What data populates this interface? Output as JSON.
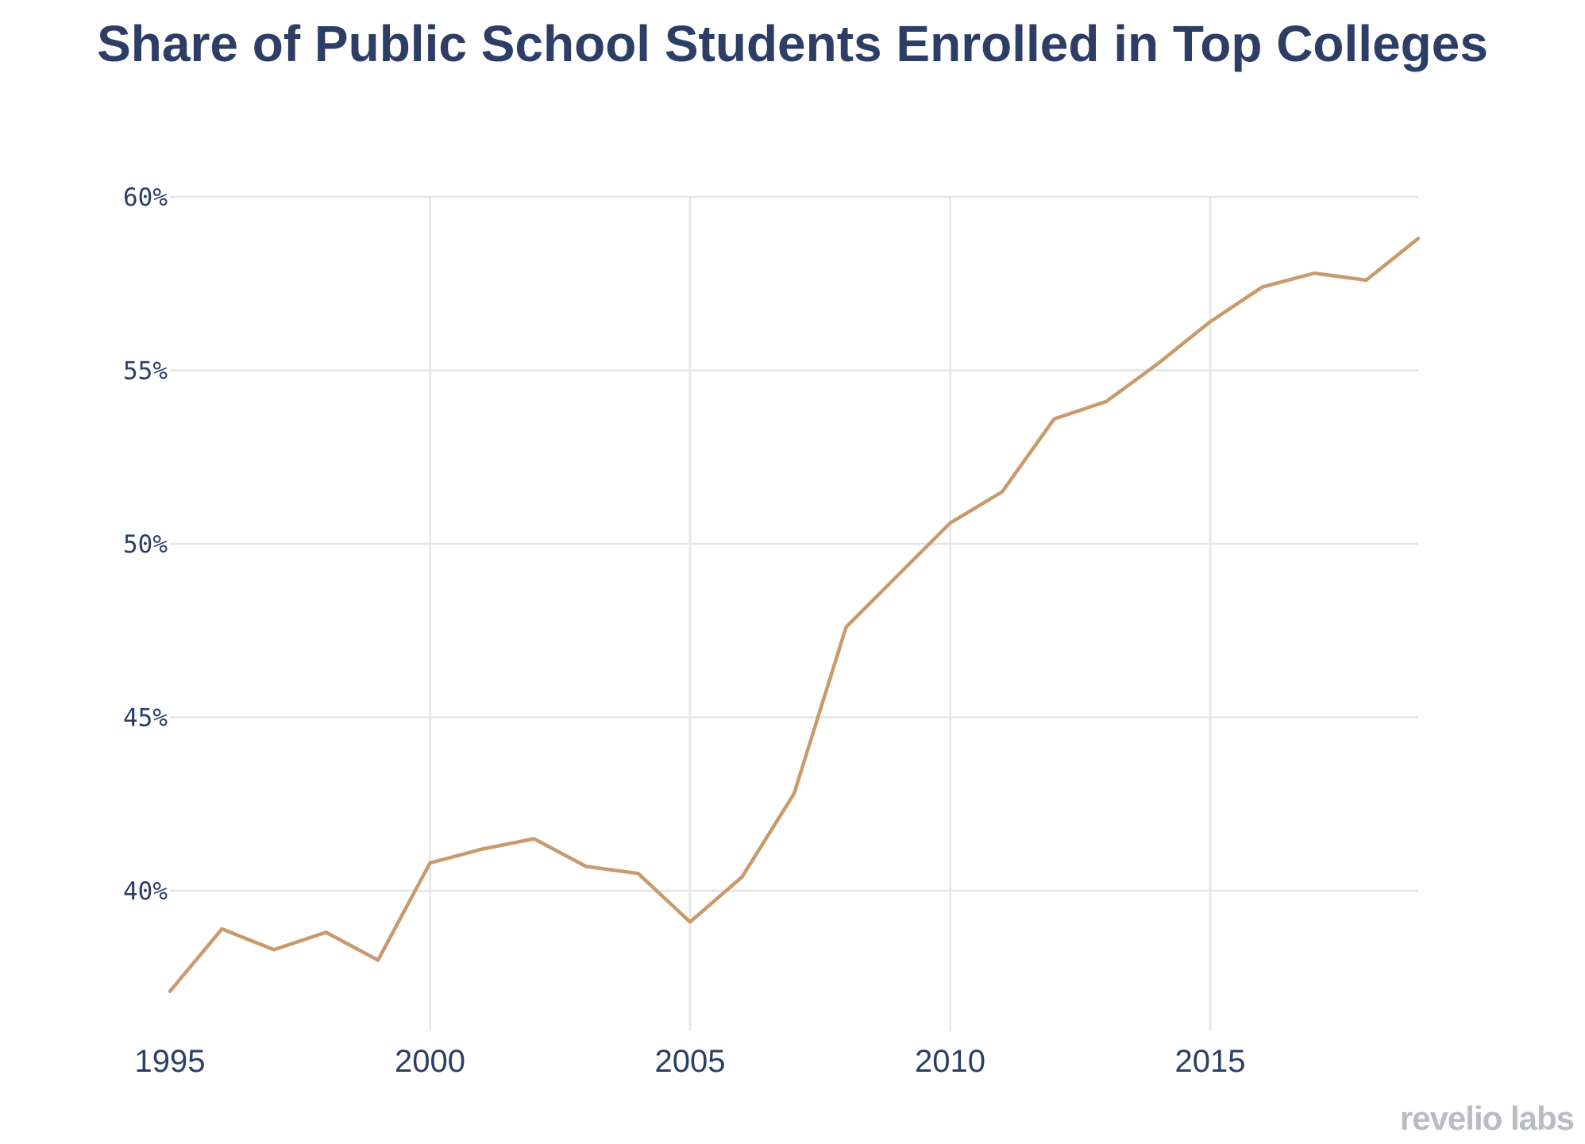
{
  "brand": {
    "logo_text": "revelio labs"
  },
  "chart_data": {
    "type": "line",
    "title": "Share of Public School Students Enrolled in Top Colleges",
    "xlabel": "",
    "ylabel": "",
    "x": [
      1995,
      1996,
      1997,
      1998,
      1999,
      2000,
      2001,
      2002,
      2003,
      2004,
      2005,
      2006,
      2007,
      2008,
      2009,
      2010,
      2011,
      2012,
      2013,
      2014,
      2015,
      2016,
      2017,
      2018,
      2019
    ],
    "series": [
      {
        "values": [
          37.1,
          38.9,
          38.3,
          38.8,
          38.0,
          40.8,
          41.2,
          41.5,
          40.7,
          40.5,
          39.1,
          40.4,
          42.8,
          47.6,
          49.1,
          50.6,
          51.5,
          53.6,
          54.1,
          55.2,
          56.4,
          57.4,
          57.8,
          57.6,
          58.8
        ],
        "color": "#c99a6c"
      }
    ],
    "xlim": [
      1995,
      2019
    ],
    "ylim": [
      36,
      60
    ],
    "xticks": [
      1995,
      2000,
      2005,
      2010,
      2015
    ],
    "xtick_labels": [
      "1995",
      "2000",
      "2005",
      "2010",
      "2015"
    ],
    "yticks": [
      40,
      45,
      50,
      55,
      60
    ],
    "ytick_labels": [
      "40%",
      "45%",
      "50%",
      "55%",
      "60%"
    ],
    "grid": true,
    "legend": "none"
  },
  "colors": {
    "title": "#2c3e66",
    "tick_text": "#2c3e66",
    "grid": "#e6e6e6",
    "brand": "#b9bcc2"
  }
}
